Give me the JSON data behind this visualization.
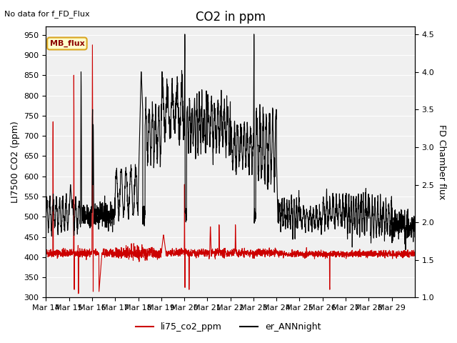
{
  "title": "CO2 in ppm",
  "ylabel_left": "LI7500 CO2 (ppm)",
  "ylabel_right": "FD Chamber flux",
  "note": "No data for f_FD_Flux",
  "legend_box_label": "MB_flux",
  "ylim_left": [
    300,
    970
  ],
  "ylim_right": [
    1.0,
    4.6
  ],
  "yticks_left": [
    300,
    350,
    400,
    450,
    500,
    550,
    600,
    650,
    700,
    750,
    800,
    850,
    900,
    950
  ],
  "yticks_right": [
    1.0,
    1.5,
    2.0,
    2.5,
    3.0,
    3.5,
    4.0,
    4.5
  ],
  "xtick_labels": [
    "Mar 14",
    "Mar 15",
    "Mar 16",
    "Mar 17",
    "Mar 18",
    "Mar 19",
    "Mar 20",
    "Mar 21",
    "Mar 22",
    "Mar 23",
    "Mar 24",
    "Mar 25",
    "Mar 26",
    "Mar 27",
    "Mar 28",
    "Mar 29"
  ],
  "color_red": "#cc0000",
  "color_black": "#000000",
  "bg_color": "#e8e8e8",
  "plot_bg": "#f0f0f0",
  "legend1_label": "li75_co2_ppm",
  "legend2_label": "er_ANNnight",
  "title_fontsize": 12,
  "label_fontsize": 9,
  "tick_fontsize": 8
}
